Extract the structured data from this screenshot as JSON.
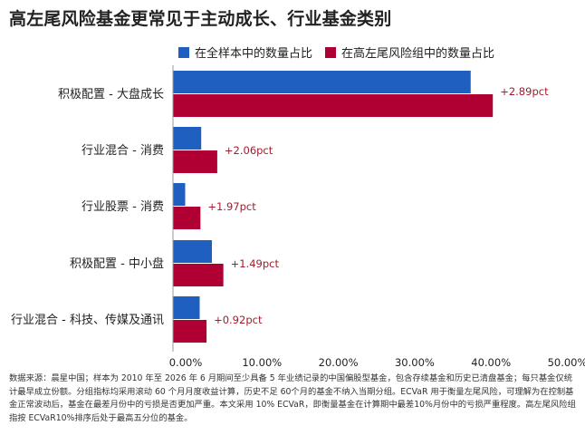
{
  "title": "高左尾风险基金更常见于主动成长、行业基金类别",
  "note": "数据来源：晨星中国；样本为 2010 年至 2026 年 6 月期间至少具备 5 年业绩记录的中国偏股型基金，包含存续基金和历史已清盘基金；每只基金仅统计最早成立份额。分组指标均采用滚动 60 个月月度收益计算，历史不足 60个月的基金不纳入当期分组。ECVaR 用于衡量左尾风险，可理解为在控制基金正常波动后，基金在最差月份中的亏损是否更加严重。本文采用 10% ECVaR，即衡量基金在计算期中最差10%月份中的亏损严重程度。高左尾风险组指按 ECVaR10%排序后处于最高五分位的基金。",
  "colors": {
    "all": "#1f5fbf",
    "high": "#b00033",
    "annotation": "#a31b2e"
  },
  "chart_data": {
    "type": "bar",
    "orientation": "horizontal",
    "title": "高左尾风险基金更常见于主动成长、行业基金类别",
    "categories": [
      "积极配置 - 大盘成长",
      "行业混合 - 消费",
      "行业股票 - 消费",
      "积极配置 - 中小盘",
      "行业混合 - 科技、传媒及通讯"
    ],
    "series": [
      {
        "name": "在全样本中的数量占比",
        "values": [
          39.0,
          3.7,
          1.6,
          5.1,
          3.5
        ]
      },
      {
        "name": "在高左尾风险组中的数量占比",
        "values": [
          41.9,
          5.8,
          3.6,
          6.6,
          4.4
        ]
      }
    ],
    "annotations": [
      "+2.89pct",
      "+2.06pct",
      "+1.97pct",
      "+1.49pct",
      "+0.92pct"
    ],
    "xlim": [
      0,
      50
    ],
    "xticks": [
      "0.00%",
      "10.00%",
      "20.00%",
      "30.00%",
      "40.00%",
      "50.00%"
    ],
    "legend": "top",
    "grid": false
  }
}
